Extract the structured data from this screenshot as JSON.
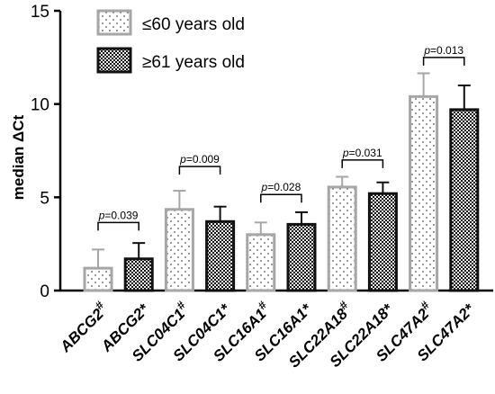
{
  "chart_data": {
    "type": "bar",
    "ylabel": "median ΔCt",
    "ylim": [
      0,
      15
    ],
    "yticks": [
      0,
      5,
      10,
      15
    ],
    "grid": false,
    "legend_position": "top-left",
    "legend": [
      {
        "label": "≤60 years old",
        "pattern": "dots"
      },
      {
        "label": "≥61 years old",
        "pattern": "checker"
      }
    ],
    "categories": [
      "ABCG2#",
      "ABCG2*",
      "SLC04C1#",
      "SLC04C1*",
      "SLC16A1#",
      "SLC16A1*",
      "SLC22A18#",
      "SLC22A18*",
      "SLC47A2#",
      "SLC47A2*"
    ],
    "values": [
      1.2,
      1.7,
      4.35,
      3.7,
      3.0,
      3.55,
      5.55,
      5.2,
      10.4,
      9.7
    ],
    "error_upper": [
      2.2,
      2.55,
      5.35,
      4.5,
      3.65,
      4.2,
      6.1,
      5.8,
      11.65,
      11.0
    ],
    "patterns": [
      "dots",
      "checker",
      "dots",
      "checker",
      "dots",
      "checker",
      "dots",
      "checker",
      "dots",
      "checker"
    ],
    "significance": [
      {
        "pair": [
          0,
          1
        ],
        "label": "p=0.039",
        "bracket_y": 3.65
      },
      {
        "pair": [
          2,
          3
        ],
        "label": "p=0.009",
        "bracket_y": 6.65
      },
      {
        "pair": [
          4,
          5
        ],
        "label": "p=0.028",
        "bracket_y": 5.15
      },
      {
        "pair": [
          6,
          7
        ],
        "label": "p=0.031",
        "bracket_y": 7.0
      },
      {
        "pair": [
          8,
          9
        ],
        "label": "p=0.013",
        "bracket_y": 12.5
      }
    ],
    "colors": {
      "bar_stroke_dots": "#a6a6a6",
      "bar_stroke_checker": "#111111",
      "dots_fill": "#ffffff",
      "dots_dot": "#555555",
      "checker_dark": "#111111",
      "checker_light": "#eeeeee"
    }
  }
}
